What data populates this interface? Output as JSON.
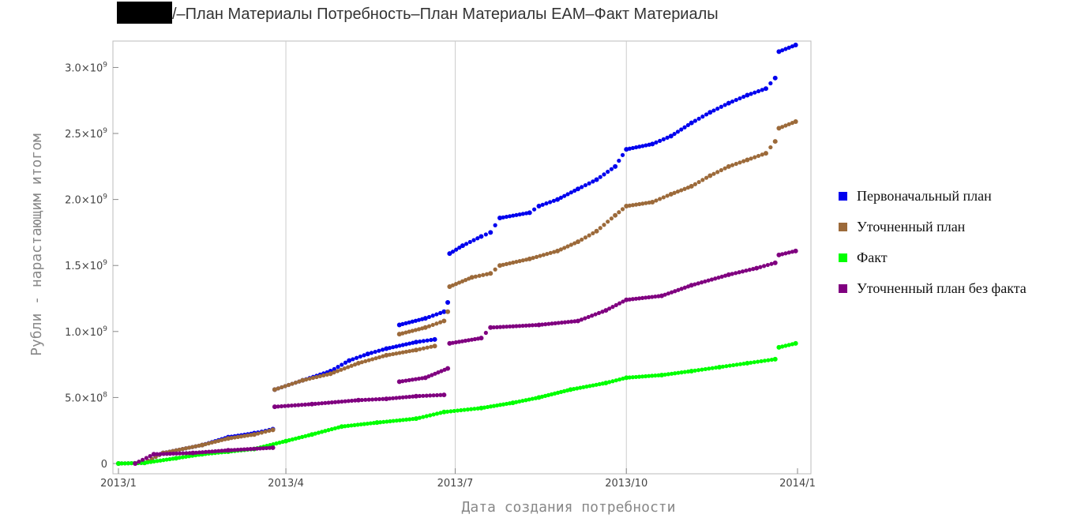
{
  "chart_data": {
    "type": "scatter",
    "title": "▇▇▇/–План Материалы Потребность–План Материалы EAM–Факт Материалы",
    "title_visible": "/–План Материалы Потребность–План Материалы EAM–Факт Материалы",
    "xlabel": "Дата создания потребности",
    "ylabel": "Рубли - нарастающим итогом",
    "x_ticks": [
      "2013/1",
      "2013/4",
      "2013/7",
      "2013/10",
      "2014/1"
    ],
    "y_ticks": [
      "0",
      "5.0×10^8",
      "1.0×10^9",
      "1.5×10^9",
      "2.0×10^9",
      "2.5×10^9",
      "3.0×10^9"
    ],
    "xlim": [
      "2013-01-01",
      "2014-01-01"
    ],
    "ylim": [
      0,
      3200000000
    ],
    "grid": "vertical",
    "legend_position": "right",
    "series": [
      {
        "name": "Первоначальный план",
        "color": "#0000ee",
        "points": [
          [
            "2013-01-01",
            0
          ],
          [
            "2013-01-15",
            5000000
          ],
          [
            "2013-01-25",
            80000000
          ],
          [
            "2013-02-15",
            140000000
          ],
          [
            "2013-03-01",
            200000000
          ],
          [
            "2013-03-15",
            230000000
          ],
          [
            "2013-03-25",
            260000000
          ],
          [
            "2013-03-26",
            560000000
          ],
          [
            "2013-04-10",
            630000000
          ],
          [
            "2013-04-25",
            700000000
          ],
          [
            "2013-05-05",
            780000000
          ],
          [
            "2013-05-15",
            830000000
          ],
          [
            "2013-05-25",
            870000000
          ],
          [
            "2013-06-10",
            920000000
          ],
          [
            "2013-06-20",
            940000000
          ],
          [
            "2013-06-01",
            1050000000
          ],
          [
            "2013-06-15",
            1100000000
          ],
          [
            "2013-06-25",
            1150000000
          ],
          [
            "2013-06-27",
            1220000000
          ],
          [
            "2013-06-28",
            1590000000
          ],
          [
            "2013-07-05",
            1650000000
          ],
          [
            "2013-07-15",
            1720000000
          ],
          [
            "2013-07-20",
            1750000000
          ],
          [
            "2013-07-25",
            1860000000
          ],
          [
            "2013-08-10",
            1900000000
          ],
          [
            "2013-08-15",
            1950000000
          ],
          [
            "2013-08-25",
            2000000000
          ],
          [
            "2013-09-05",
            2080000000
          ],
          [
            "2013-09-15",
            2150000000
          ],
          [
            "2013-09-25",
            2250000000
          ],
          [
            "2013-10-01",
            2380000000
          ],
          [
            "2013-10-15",
            2420000000
          ],
          [
            "2013-10-25",
            2480000000
          ],
          [
            "2013-11-05",
            2580000000
          ],
          [
            "2013-11-15",
            2660000000
          ],
          [
            "2013-11-25",
            2730000000
          ],
          [
            "2013-12-05",
            2790000000
          ],
          [
            "2013-12-15",
            2840000000
          ],
          [
            "2013-12-20",
            2920000000
          ],
          [
            "2013-12-22",
            3120000000
          ],
          [
            "2013-12-31",
            3170000000
          ]
        ]
      },
      {
        "name": "Уточненный план",
        "color": "#9c6a3a",
        "points": [
          [
            "2013-01-01",
            0
          ],
          [
            "2013-01-15",
            5000000
          ],
          [
            "2013-01-25",
            80000000
          ],
          [
            "2013-02-15",
            140000000
          ],
          [
            "2013-03-01",
            190000000
          ],
          [
            "2013-03-15",
            220000000
          ],
          [
            "2013-03-25",
            255000000
          ],
          [
            "2013-03-26",
            560000000
          ],
          [
            "2013-04-10",
            630000000
          ],
          [
            "2013-04-25",
            680000000
          ],
          [
            "2013-05-10",
            760000000
          ],
          [
            "2013-05-25",
            820000000
          ],
          [
            "2013-06-10",
            860000000
          ],
          [
            "2013-06-20",
            890000000
          ],
          [
            "2013-06-01",
            980000000
          ],
          [
            "2013-06-15",
            1030000000
          ],
          [
            "2013-06-25",
            1080000000
          ],
          [
            "2013-06-27",
            1150000000
          ],
          [
            "2013-06-28",
            1340000000
          ],
          [
            "2013-07-10",
            1410000000
          ],
          [
            "2013-07-20",
            1440000000
          ],
          [
            "2013-07-25",
            1500000000
          ],
          [
            "2013-08-10",
            1550000000
          ],
          [
            "2013-08-25",
            1610000000
          ],
          [
            "2013-09-05",
            1680000000
          ],
          [
            "2013-09-15",
            1760000000
          ],
          [
            "2013-09-25",
            1880000000
          ],
          [
            "2013-10-01",
            1950000000
          ],
          [
            "2013-10-15",
            1980000000
          ],
          [
            "2013-10-25",
            2040000000
          ],
          [
            "2013-11-05",
            2100000000
          ],
          [
            "2013-11-15",
            2180000000
          ],
          [
            "2013-11-25",
            2250000000
          ],
          [
            "2013-12-05",
            2300000000
          ],
          [
            "2013-12-15",
            2350000000
          ],
          [
            "2013-12-20",
            2440000000
          ],
          [
            "2013-12-22",
            2540000000
          ],
          [
            "2013-12-31",
            2590000000
          ]
        ]
      },
      {
        "name": "Факт",
        "color": "#00ff00",
        "points": [
          [
            "2013-01-01",
            0
          ],
          [
            "2013-01-15",
            5000000
          ],
          [
            "2013-02-01",
            40000000
          ],
          [
            "2013-02-15",
            70000000
          ],
          [
            "2013-03-01",
            90000000
          ],
          [
            "2013-03-15",
            110000000
          ],
          [
            "2013-04-01",
            170000000
          ],
          [
            "2013-04-15",
            220000000
          ],
          [
            "2013-05-01",
            280000000
          ],
          [
            "2013-05-20",
            310000000
          ],
          [
            "2013-06-10",
            340000000
          ],
          [
            "2013-06-25",
            390000000
          ],
          [
            "2013-07-15",
            420000000
          ],
          [
            "2013-08-01",
            460000000
          ],
          [
            "2013-08-15",
            500000000
          ],
          [
            "2013-09-01",
            560000000
          ],
          [
            "2013-09-20",
            610000000
          ],
          [
            "2013-10-01",
            650000000
          ],
          [
            "2013-10-20",
            670000000
          ],
          [
            "2013-11-05",
            700000000
          ],
          [
            "2013-11-20",
            730000000
          ],
          [
            "2013-12-05",
            760000000
          ],
          [
            "2013-12-20",
            790000000
          ],
          [
            "2013-12-22",
            880000000
          ],
          [
            "2013-12-31",
            910000000
          ]
        ]
      },
      {
        "name": "Уточненный план без факта",
        "color": "#800080",
        "points": [
          [
            "2013-01-10",
            0
          ],
          [
            "2013-01-20",
            70000000
          ],
          [
            "2013-02-10",
            80000000
          ],
          [
            "2013-03-01",
            100000000
          ],
          [
            "2013-03-25",
            120000000
          ],
          [
            "2013-03-26",
            430000000
          ],
          [
            "2013-04-15",
            450000000
          ],
          [
            "2013-05-10",
            480000000
          ],
          [
            "2013-05-25",
            490000000
          ],
          [
            "2013-06-10",
            510000000
          ],
          [
            "2013-06-25",
            520000000
          ],
          [
            "2013-06-01",
            620000000
          ],
          [
            "2013-06-15",
            650000000
          ],
          [
            "2013-06-27",
            720000000
          ],
          [
            "2013-06-28",
            910000000
          ],
          [
            "2013-07-15",
            950000000
          ],
          [
            "2013-07-20",
            1030000000
          ],
          [
            "2013-08-15",
            1050000000
          ],
          [
            "2013-09-05",
            1080000000
          ],
          [
            "2013-09-20",
            1160000000
          ],
          [
            "2013-10-01",
            1240000000
          ],
          [
            "2013-10-20",
            1270000000
          ],
          [
            "2013-11-05",
            1350000000
          ],
          [
            "2013-11-25",
            1430000000
          ],
          [
            "2013-12-10",
            1480000000
          ],
          [
            "2013-12-20",
            1520000000
          ],
          [
            "2013-12-22",
            1580000000
          ],
          [
            "2013-12-31",
            1610000000
          ]
        ]
      }
    ]
  }
}
